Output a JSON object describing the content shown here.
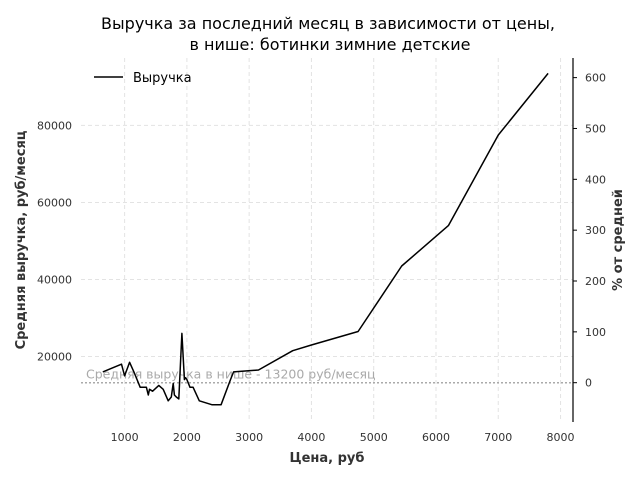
{
  "chart_data": {
    "type": "line",
    "title_line1": "Выручка за последний месяц в зависимости от цены,",
    "title_line2": "в нише: ботинки зимние детские",
    "xlabel": "Цена, руб",
    "ylabel": "Средняя выручка, руб/месяц",
    "y2label": "% от средней",
    "xlim": [
      300,
      8200
    ],
    "ylim": [
      3000,
      97500
    ],
    "y2lim": [
      -77.3,
      638.6
    ],
    "xticks": [
      "1000",
      "2000",
      "3000",
      "4000",
      "5000",
      "6000",
      "7000",
      "8000"
    ],
    "yticks": [
      "20000",
      "40000",
      "60000",
      "80000"
    ],
    "y2ticks": [
      "0",
      "100",
      "200",
      "300",
      "400",
      "500",
      "600"
    ],
    "grid": true,
    "legend_position": "top-left",
    "series": [
      {
        "name": "Выручка",
        "color": "#000000",
        "x": [
          650,
          800,
          950,
          1000,
          1080,
          1150,
          1250,
          1350,
          1380,
          1400,
          1450,
          1550,
          1620,
          1700,
          1750,
          1780,
          1800,
          1830,
          1870,
          1920,
          1960,
          1980,
          2000,
          2050,
          2100,
          2200,
          2400,
          2550,
          2700,
          2750,
          3150,
          3700,
          4000,
          4750,
          5450,
          6200,
          7000,
          7800
        ],
        "y": [
          16000,
          17000,
          18000,
          15000,
          18500,
          16000,
          12000,
          12000,
          10000,
          11500,
          11000,
          12500,
          11500,
          8500,
          9500,
          13000,
          10000,
          9500,
          9000,
          26000,
          14000,
          14500,
          14000,
          12000,
          12000,
          8500,
          7500,
          7500,
          14000,
          16000,
          16500,
          21500,
          23000,
          26500,
          43500,
          54000,
          77500,
          93500
        ]
      }
    ],
    "reference_line": {
      "label": "Средняя выручка в нише - 13200 руб/месяц",
      "value": 13200,
      "color": "#aaaaaa"
    }
  }
}
